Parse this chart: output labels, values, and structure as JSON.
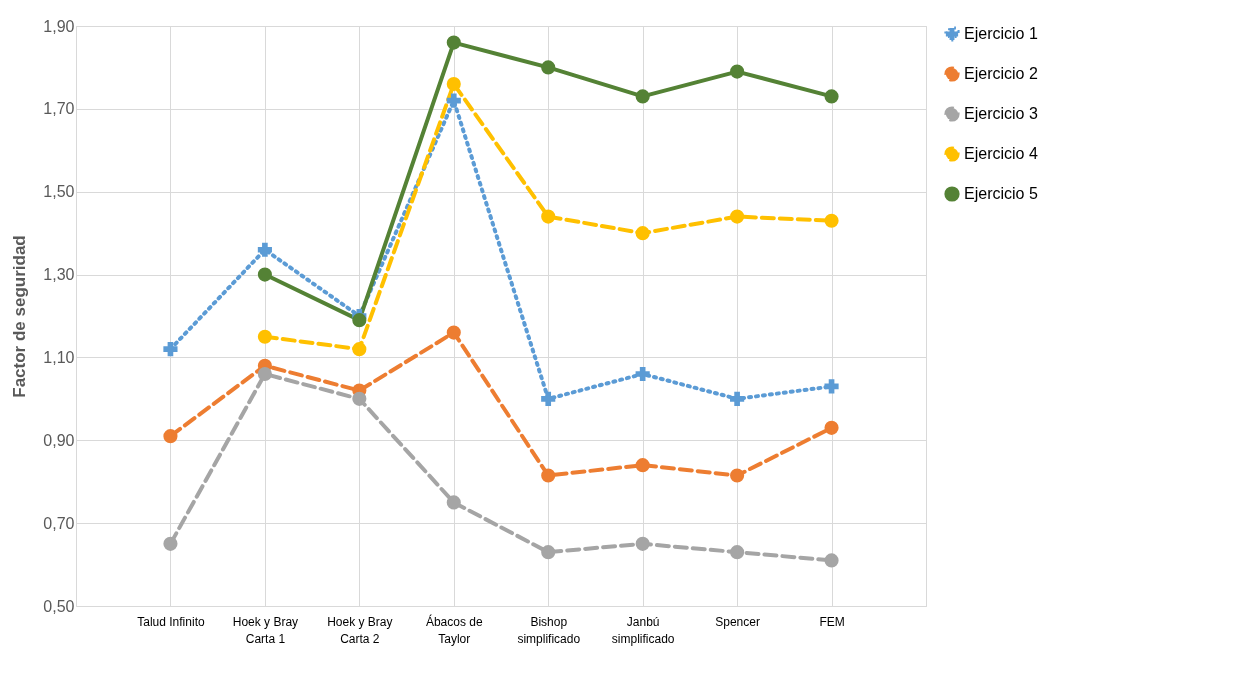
{
  "chart_data": {
    "type": "line",
    "ylabel": "Factor de seguridad",
    "categories": [
      null,
      "Talud Infinito",
      "Hoek y Bray Carta 1",
      "Hoek y Bray Carta 2",
      "Ábacos de Taylor",
      "Bishop simplificado",
      "Janbú simplificado",
      "Spencer",
      "FEM",
      null
    ],
    "series": [
      {
        "name": "Ejercicio 1",
        "color": "#5b9bd5",
        "line_style": "dotted",
        "marker": "cross",
        "values": [
          null,
          1.12,
          1.36,
          1.2,
          1.72,
          1.0,
          1.06,
          1.0,
          1.03,
          null
        ]
      },
      {
        "name": "Ejercicio 2",
        "color": "#ed7d31",
        "line_style": "dashed",
        "marker": "circle",
        "values": [
          null,
          0.91,
          1.08,
          1.02,
          1.16,
          0.815,
          0.84,
          0.815,
          0.93,
          null
        ]
      },
      {
        "name": "Ejercicio 3",
        "color": "#a5a5a5",
        "line_style": "dashed",
        "marker": "circle",
        "values": [
          null,
          0.65,
          1.06,
          1.0,
          0.75,
          0.63,
          0.65,
          0.63,
          0.61,
          null
        ]
      },
      {
        "name": "Ejercicio 4",
        "color": "#ffc000",
        "line_style": "dashed",
        "marker": "circle",
        "values": [
          null,
          null,
          1.15,
          1.12,
          1.76,
          1.44,
          1.4,
          1.44,
          1.43,
          null
        ]
      },
      {
        "name": "Ejercicio 5",
        "color": "#548235",
        "line_style": "solid",
        "marker": "circle",
        "values": [
          null,
          null,
          1.3,
          1.19,
          1.86,
          1.8,
          1.73,
          1.79,
          1.73,
          null
        ]
      }
    ],
    "ylim": [
      0.5,
      1.9
    ],
    "yticks": [
      {
        "value": 0.5,
        "label": "0,50"
      },
      {
        "value": 0.7,
        "label": "0,70"
      },
      {
        "value": 0.9,
        "label": "0,90"
      },
      {
        "value": 1.1,
        "label": "1,10"
      },
      {
        "value": 1.3,
        "label": "1,30"
      },
      {
        "value": 1.5,
        "label": "1,50"
      },
      {
        "value": 1.7,
        "label": "1,70"
      },
      {
        "value": 1.9,
        "label": "1,90"
      }
    ],
    "grid": true,
    "legend": "right"
  }
}
